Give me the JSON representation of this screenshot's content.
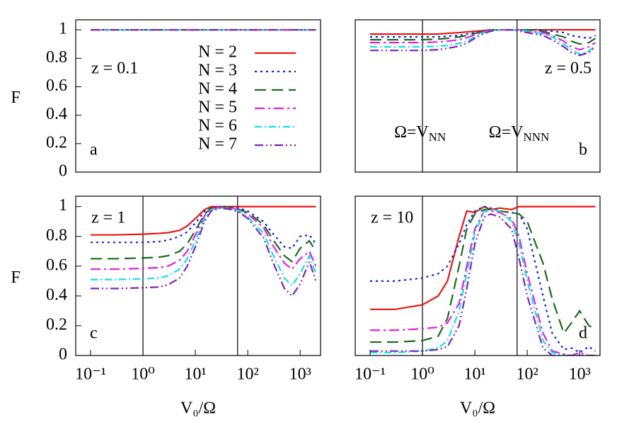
{
  "chart_data": [
    {
      "type": "line",
      "panel_label": "a",
      "z_label": "z = 0.1",
      "ylabel": "F",
      "xscale": "log",
      "xlim": [
        0.052,
        2450
      ],
      "ylim": [
        0,
        1.07
      ],
      "yticks": [
        0,
        0.2,
        0.4,
        0.6,
        0.8,
        1
      ],
      "legend": "center",
      "x": [
        0.1,
        0.3,
        1,
        2,
        3,
        5,
        7,
        10,
        15,
        20,
        30,
        50,
        70,
        100,
        200,
        300,
        500,
        700,
        1000,
        1500,
        2000
      ],
      "series": [
        {
          "name": "N = 2",
          "color": "#e41a10",
          "dash": "none",
          "values": [
            1,
            1,
            1,
            1,
            1,
            1,
            1,
            1,
            1,
            1,
            1,
            1,
            1,
            1,
            1,
            1,
            1,
            1,
            1,
            1,
            1
          ]
        },
        {
          "name": "N = 3",
          "color": "#1020e0",
          "dash": "3,5",
          "values": [
            1,
            1,
            1,
            1,
            1,
            1,
            1,
            1,
            1,
            1,
            1,
            1,
            1,
            1,
            1,
            1,
            1,
            1,
            1,
            1,
            1
          ]
        },
        {
          "name": "N = 4",
          "color": "#1a6b1a",
          "dash": "16,8",
          "values": [
            1,
            1,
            1,
            1,
            1,
            1,
            1,
            1,
            1,
            1,
            1,
            1,
            1,
            1,
            1,
            1,
            1,
            1,
            1,
            1,
            1
          ]
        },
        {
          "name": "N = 5",
          "color": "#e020e0",
          "dash": "14,5,3,5",
          "values": [
            1,
            1,
            1,
            1,
            1,
            1,
            1,
            1,
            1,
            1,
            1,
            1,
            1,
            1,
            1,
            1,
            1,
            1,
            1,
            1,
            1
          ]
        },
        {
          "name": "N = 6",
          "color": "#10e0e0",
          "dash": "10,4,2,4",
          "values": [
            1,
            1,
            1,
            1,
            1,
            1,
            1,
            1,
            1,
            1,
            1,
            1,
            1,
            1,
            1,
            1,
            1,
            1,
            1,
            1,
            1
          ]
        },
        {
          "name": "N = 7",
          "color": "#8020c0",
          "dash": "12,4,2,4,2,4",
          "values": [
            1,
            1,
            1,
            1,
            1,
            1,
            1,
            1,
            1,
            1,
            1,
            1,
            1,
            1,
            1,
            1,
            1,
            1,
            1,
            1,
            1
          ]
        }
      ]
    },
    {
      "type": "line",
      "panel_label": "b",
      "z_label": "z = 0.5",
      "xscale": "log",
      "xlim": [
        0.052,
        2450
      ],
      "ylim": [
        0,
        1.07
      ],
      "vlines": [
        1,
        64
      ],
      "vline_labels": [
        {
          "text": "Ω=V",
          "sub": "NN"
        },
        {
          "text": "Ω=V",
          "sub": "NNN"
        }
      ],
      "x": [
        0.1,
        0.3,
        1,
        2,
        3,
        5,
        7,
        10,
        15,
        20,
        30,
        50,
        70,
        100,
        200,
        300,
        500,
        700,
        1000,
        1500,
        2000
      ],
      "series": [
        {
          "color": "#e41a10",
          "dash": "none",
          "values": [
            0.97,
            0.97,
            0.97,
            0.97,
            0.975,
            0.98,
            0.985,
            0.99,
            0.995,
            1,
            1,
            1,
            1,
            1,
            1,
            1,
            1,
            1,
            1,
            1,
            1
          ]
        },
        {
          "color": "#1020e0",
          "dash": "3,5",
          "values": [
            0.95,
            0.95,
            0.95,
            0.95,
            0.955,
            0.96,
            0.97,
            0.98,
            0.99,
            1,
            1,
            1,
            1,
            1,
            1,
            0.99,
            0.98,
            0.96,
            0.95,
            0.94,
            0.96
          ]
        },
        {
          "color": "#1a6b1a",
          "dash": "16,8",
          "values": [
            0.93,
            0.93,
            0.93,
            0.935,
            0.94,
            0.95,
            0.96,
            0.975,
            0.99,
            1,
            1,
            1,
            1,
            1,
            0.99,
            0.97,
            0.95,
            0.92,
            0.9,
            0.91,
            0.94
          ]
        },
        {
          "color": "#e020e0",
          "dash": "14,5,3,5",
          "values": [
            0.91,
            0.91,
            0.91,
            0.915,
            0.92,
            0.93,
            0.945,
            0.965,
            0.985,
            0.995,
            1,
            1,
            1,
            0.99,
            0.98,
            0.96,
            0.92,
            0.88,
            0.86,
            0.88,
            0.91
          ]
        },
        {
          "color": "#10e0e0",
          "dash": "10,4,2,4",
          "values": [
            0.88,
            0.88,
            0.88,
            0.885,
            0.89,
            0.905,
            0.92,
            0.95,
            0.98,
            0.995,
            1,
            1,
            1,
            0.99,
            0.97,
            0.95,
            0.9,
            0.86,
            0.83,
            0.85,
            0.89
          ]
        },
        {
          "color": "#8020c0",
          "dash": "12,4,2,4,2,4",
          "values": [
            0.855,
            0.855,
            0.855,
            0.86,
            0.87,
            0.885,
            0.905,
            0.94,
            0.975,
            0.99,
            1,
            1,
            0.99,
            0.98,
            0.96,
            0.93,
            0.88,
            0.84,
            0.82,
            0.84,
            0.88
          ]
        }
      ]
    },
    {
      "type": "line",
      "panel_label": "c",
      "z_label": "z = 1",
      "ylabel": "F",
      "xlabel": "V₀/Ω",
      "xscale": "log",
      "xlim": [
        0.052,
        2450
      ],
      "ylim": [
        0,
        1.07
      ],
      "yticks": [
        0,
        0.2,
        0.4,
        0.6,
        0.8,
        1
      ],
      "xticks": [
        {
          "value": 0.1,
          "label": "10⁻¹"
        },
        {
          "value": 1,
          "label": "10⁰"
        },
        {
          "value": 10,
          "label": "10¹"
        },
        {
          "value": 100,
          "label": "10²"
        },
        {
          "value": 1000,
          "label": "10³"
        }
      ],
      "vlines": [
        1,
        64
      ],
      "x": [
        0.1,
        0.3,
        1,
        2,
        3,
        5,
        7,
        10,
        15,
        20,
        30,
        50,
        70,
        100,
        200,
        300,
        500,
        700,
        1000,
        1500,
        2000
      ],
      "series": [
        {
          "color": "#e41a10",
          "dash": "none",
          "values": [
            0.81,
            0.81,
            0.815,
            0.82,
            0.825,
            0.84,
            0.87,
            0.92,
            0.98,
            1,
            1,
            1,
            1,
            1,
            1,
            1,
            1,
            1,
            1,
            1,
            1
          ]
        },
        {
          "color": "#1020e0",
          "dash": "3,5",
          "values": [
            0.76,
            0.76,
            0.76,
            0.765,
            0.775,
            0.8,
            0.83,
            0.89,
            0.97,
            0.99,
            1,
            0.995,
            0.99,
            0.97,
            0.9,
            0.82,
            0.73,
            0.72,
            0.8,
            0.81,
            0.75
          ]
        },
        {
          "color": "#1a6b1a",
          "dash": "16,8",
          "values": [
            0.65,
            0.65,
            0.655,
            0.66,
            0.67,
            0.7,
            0.75,
            0.84,
            0.95,
            0.99,
            1,
            0.99,
            0.98,
            0.96,
            0.88,
            0.78,
            0.67,
            0.63,
            0.72,
            0.77,
            0.7
          ]
        },
        {
          "color": "#e020e0",
          "dash": "14,5,3,5",
          "values": [
            0.58,
            0.58,
            0.585,
            0.59,
            0.6,
            0.64,
            0.7,
            0.81,
            0.94,
            0.985,
            0.995,
            0.99,
            0.975,
            0.95,
            0.86,
            0.74,
            0.62,
            0.58,
            0.65,
            0.7,
            0.6
          ]
        },
        {
          "color": "#10e0e0",
          "dash": "10,4,2,4",
          "values": [
            0.51,
            0.51,
            0.515,
            0.52,
            0.535,
            0.58,
            0.65,
            0.77,
            0.92,
            0.98,
            0.99,
            0.985,
            0.97,
            0.93,
            0.82,
            0.68,
            0.52,
            0.47,
            0.55,
            0.67,
            0.55
          ]
        },
        {
          "color": "#8020c0",
          "dash": "12,4,2,4,2,4",
          "values": [
            0.45,
            0.45,
            0.455,
            0.46,
            0.475,
            0.52,
            0.6,
            0.73,
            0.9,
            0.97,
            0.99,
            0.98,
            0.96,
            0.92,
            0.79,
            0.63,
            0.45,
            0.4,
            0.48,
            0.63,
            0.5
          ]
        }
      ]
    },
    {
      "type": "line",
      "panel_label": "d",
      "z_label": "z = 10",
      "xlabel": "V₀/Ω",
      "xscale": "log",
      "xlim": [
        0.052,
        2450
      ],
      "ylim": [
        0,
        1.07
      ],
      "xticks": [
        {
          "value": 0.1,
          "label": "10⁻¹"
        },
        {
          "value": 1,
          "label": "10⁰"
        },
        {
          "value": 10,
          "label": "10¹"
        },
        {
          "value": 100,
          "label": "10²"
        },
        {
          "value": 1000,
          "label": "10³"
        }
      ],
      "vlines": [
        1,
        64
      ],
      "x": [
        0.1,
        0.3,
        1,
        2,
        3,
        5,
        7,
        10,
        15,
        20,
        30,
        50,
        70,
        100,
        200,
        300,
        500,
        700,
        1000,
        1500,
        2000
      ],
      "series": [
        {
          "color": "#e41a10",
          "dash": "none",
          "values": [
            0.31,
            0.31,
            0.34,
            0.4,
            0.5,
            0.8,
            0.97,
            0.96,
            1,
            0.98,
            0.99,
            0.98,
            1,
            1,
            1,
            1,
            1,
            1,
            1,
            1,
            1
          ]
        },
        {
          "color": "#1020e0",
          "dash": "3,5",
          "values": [
            0.5,
            0.5,
            0.52,
            0.55,
            0.6,
            0.75,
            0.88,
            0.97,
            1,
            0.99,
            0.97,
            0.96,
            0.95,
            0.85,
            0.4,
            0.15,
            0.04,
            0.05,
            0.02,
            0.06,
            0.03
          ]
        },
        {
          "color": "#1a6b1a",
          "dash": "16,8",
          "values": [
            0.09,
            0.09,
            0.1,
            0.13,
            0.25,
            0.6,
            0.85,
            0.95,
            0.98,
            0.98,
            0.97,
            0.96,
            0.95,
            0.9,
            0.62,
            0.38,
            0.15,
            0.22,
            0.3,
            0.2,
            0.18
          ]
        },
        {
          "color": "#e020e0",
          "dash": "14,5,3,5",
          "values": [
            0.17,
            0.17,
            0.18,
            0.19,
            0.22,
            0.35,
            0.6,
            0.85,
            0.97,
            0.97,
            0.96,
            0.92,
            0.8,
            0.55,
            0.15,
            0.03,
            0.01,
            0,
            0.02,
            0,
            0
          ]
        },
        {
          "color": "#10e0e0",
          "dash": "10,4,2,4",
          "values": [
            0.02,
            0.02,
            0.03,
            0.05,
            0.1,
            0.3,
            0.55,
            0.82,
            0.97,
            0.98,
            0.97,
            0.9,
            0.75,
            0.5,
            0.1,
            0.02,
            0,
            0,
            0,
            0,
            0
          ]
        },
        {
          "color": "#8020c0",
          "dash": "12,4,2,4,2,4",
          "values": [
            0.03,
            0.03,
            0.03,
            0.04,
            0.06,
            0.2,
            0.45,
            0.75,
            0.93,
            0.95,
            0.93,
            0.85,
            0.65,
            0.4,
            0.05,
            0,
            0,
            0,
            0,
            0,
            0
          ]
        }
      ]
    }
  ]
}
